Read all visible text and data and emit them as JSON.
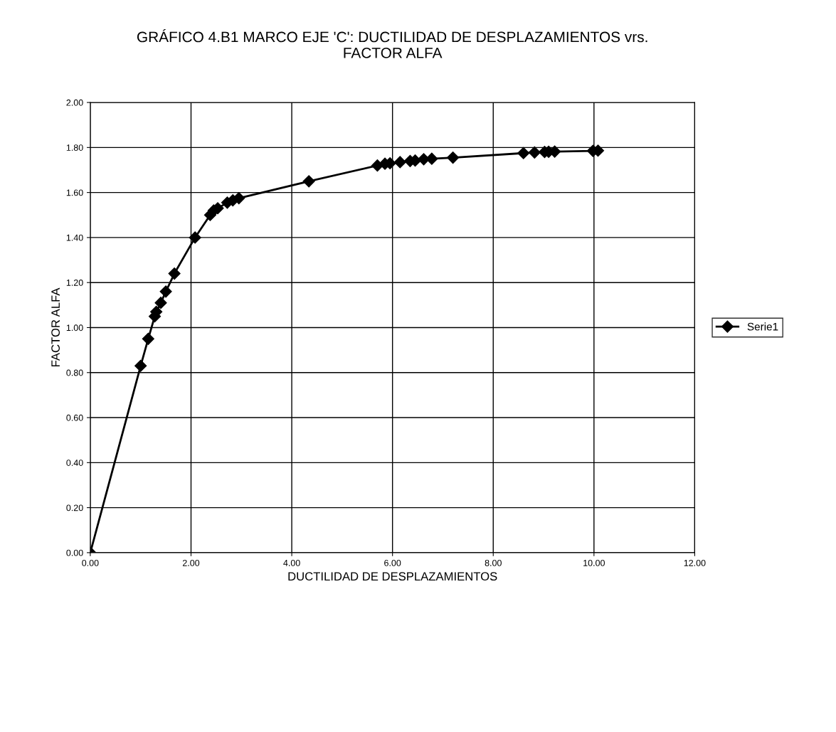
{
  "chart_data": {
    "type": "line",
    "title": "GRÁFICO 4.B1 MARCO EJE 'C': DUCTILIDAD DE DESPLAZAMIENTOS vrs.\nFACTOR ALFA",
    "xlabel": "DUCTILIDAD DE DESPLAZAMIENTOS",
    "ylabel": "FACTOR ALFA",
    "x": [
      0,
      1.0,
      1.15,
      1.28,
      1.31,
      1.4,
      1.5,
      1.67,
      2.08,
      2.38,
      2.45,
      2.53,
      2.72,
      2.83,
      2.95,
      4.34,
      5.7,
      5.85,
      5.95,
      6.15,
      6.35,
      6.45,
      6.62,
      6.78,
      7.2,
      8.6,
      8.82,
      9.02,
      9.1,
      9.22,
      9.98,
      10.08
    ],
    "series": [
      {
        "name": "Serie1",
        "color": "#000000",
        "values": [
          0,
          0.83,
          0.95,
          1.05,
          1.07,
          1.11,
          1.16,
          1.24,
          1.4,
          1.5,
          1.52,
          1.53,
          1.555,
          1.565,
          1.575,
          1.65,
          1.72,
          1.728,
          1.73,
          1.735,
          1.74,
          1.742,
          1.748,
          1.75,
          1.755,
          1.775,
          1.778,
          1.78,
          1.781,
          1.782,
          1.785,
          1.786
        ]
      }
    ],
    "xlim": [
      0,
      12
    ],
    "ylim": [
      0,
      2
    ],
    "xticks": [
      {
        "value": 0,
        "label": "0.00"
      },
      {
        "value": 2,
        "label": "2.00"
      },
      {
        "value": 4,
        "label": "4.00"
      },
      {
        "value": 6,
        "label": "6.00"
      },
      {
        "value": 8,
        "label": "8.00"
      },
      {
        "value": 10,
        "label": "10.00"
      },
      {
        "value": 12,
        "label": "12.00"
      }
    ],
    "yticks": [
      {
        "value": 0,
        "label": "0.00"
      },
      {
        "value": 0.2,
        "label": "0.20"
      },
      {
        "value": 0.4,
        "label": "0.40"
      },
      {
        "value": 0.6,
        "label": "0.60"
      },
      {
        "value": 0.8,
        "label": "0.80"
      },
      {
        "value": 1,
        "label": "1.00"
      },
      {
        "value": 1.2,
        "label": "1.20"
      },
      {
        "value": 1.4,
        "label": "1.40"
      },
      {
        "value": 1.6,
        "label": "1.60"
      },
      {
        "value": 1.8,
        "label": "1.80"
      },
      {
        "value": 2,
        "label": "2.00"
      }
    ],
    "grid": true,
    "legend": "right",
    "marker": "diamond",
    "line_style": "solid"
  }
}
